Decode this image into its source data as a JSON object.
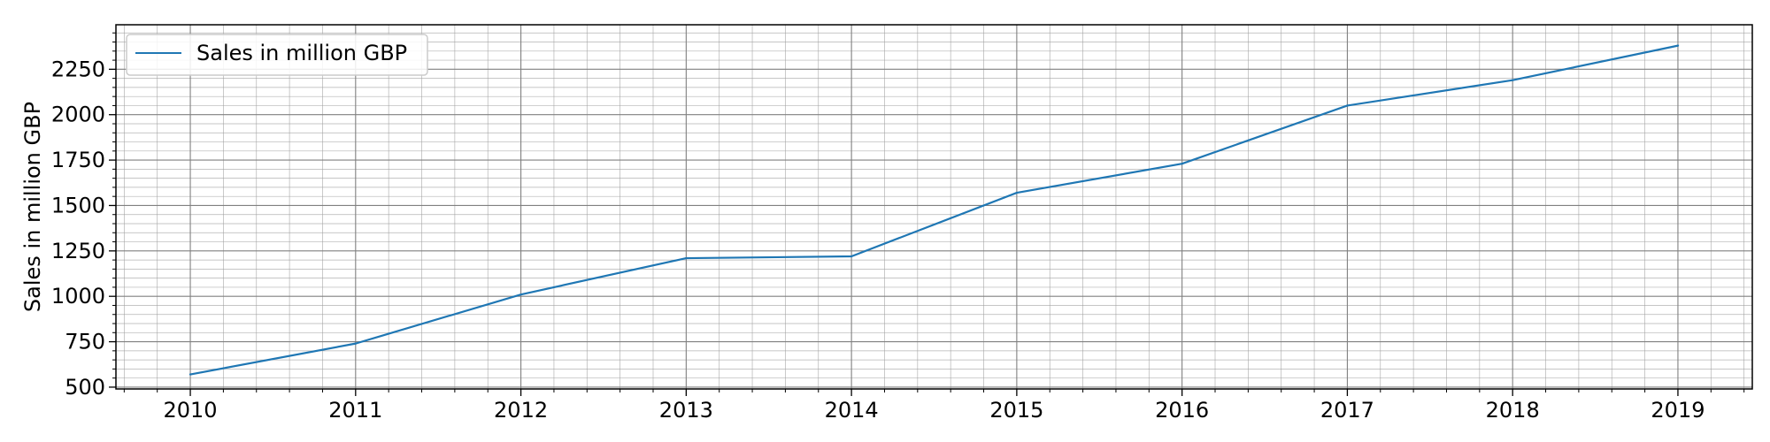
{
  "chart_data": {
    "type": "line",
    "title": "",
    "xlabel": "",
    "ylabel": "Sales in million GBP",
    "x": [
      2010,
      2011,
      2012,
      2013,
      2014,
      2015,
      2016,
      2017,
      2018,
      2019
    ],
    "series": [
      {
        "name": "Sales in million GBP",
        "values": [
          570,
          740,
          1010,
          1210,
          1220,
          1570,
          1730,
          2050,
          2190,
          2380
        ]
      }
    ],
    "xlim": [
      2009.55,
      2019.45
    ],
    "ylim": [
      490,
      2495
    ],
    "xticks": [
      2010,
      2011,
      2012,
      2013,
      2014,
      2015,
      2016,
      2017,
      2018,
      2019
    ],
    "yticks": [
      500,
      750,
      1000,
      1250,
      1500,
      1750,
      2000,
      2250
    ],
    "xtick_labels": [
      "2010",
      "2011",
      "2012",
      "2013",
      "2014",
      "2015",
      "2016",
      "2017",
      "2018",
      "2019"
    ],
    "ytick_labels": [
      "500",
      "750",
      "1000",
      "1250",
      "1500",
      "1750",
      "2000",
      "2250"
    ],
    "grid": "major and minor",
    "legend_placement": "top-left",
    "colors": {
      "series": "#1f77b4",
      "grid": "#a0a0a0",
      "axes": "#000000"
    }
  }
}
